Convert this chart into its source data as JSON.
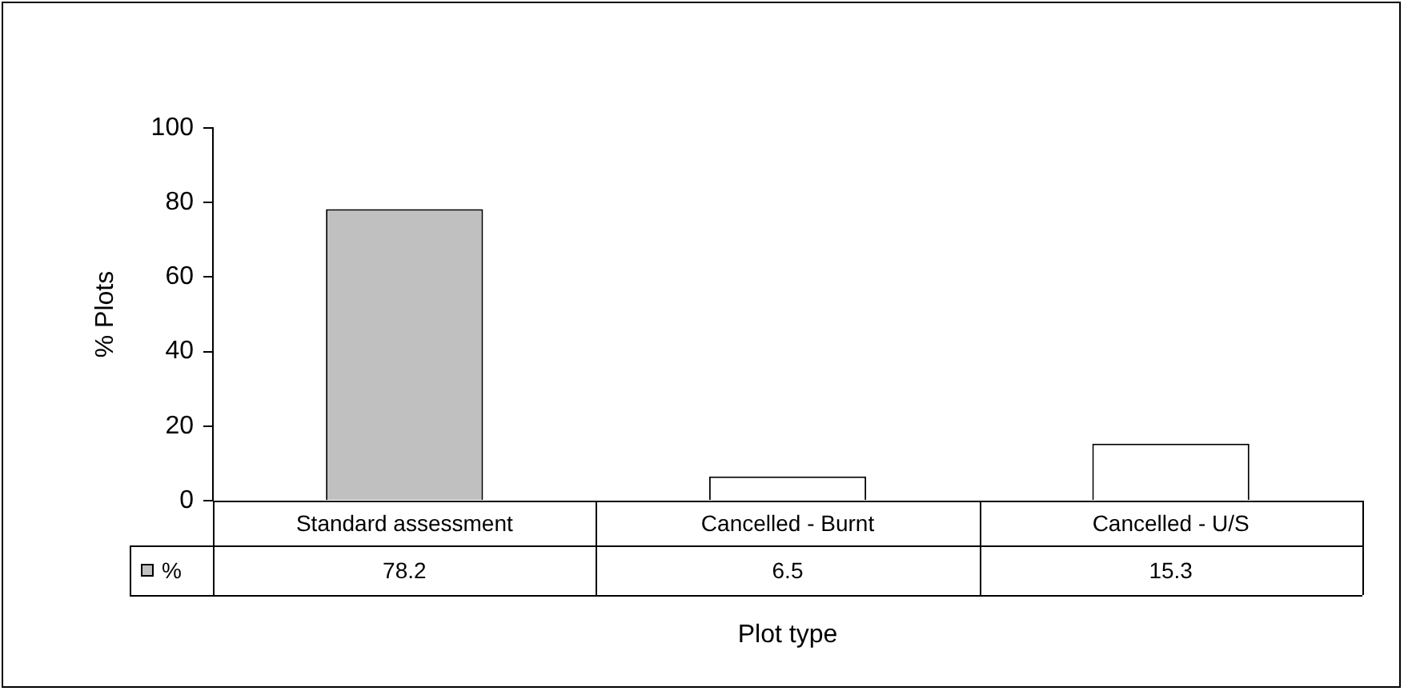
{
  "chart_data": {
    "type": "bar",
    "ylabel": "% Plots",
    "xlabel": "Plot type",
    "categories": [
      "Standard assessment",
      "Cancelled - Burnt",
      "Cancelled - U/S"
    ],
    "series": [
      {
        "name": "%",
        "color": "#c0c0c0",
        "colors": [
          "#c0c0c0",
          "#ffffff",
          "#ffffff"
        ],
        "values": [
          78.2,
          6.5,
          15.3
        ]
      }
    ],
    "ylim": [
      0,
      100
    ],
    "yticks": [
      0,
      20,
      40,
      60,
      80,
      100
    ],
    "grid": false,
    "legend": "bottom left",
    "data_labels": true
  }
}
